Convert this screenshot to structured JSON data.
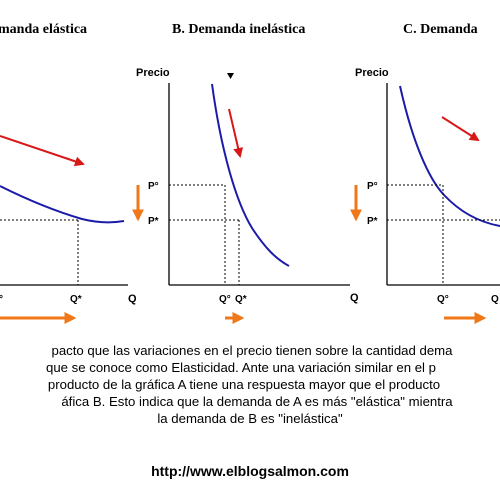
{
  "panels": {
    "a": {
      "title": "manda elástica",
      "xlabel": "Q",
      "q1": "°",
      "q2": "Q*"
    },
    "b": {
      "title": "B.  Demanda inelástica",
      "ylabel": "Precio",
      "p1": "P°",
      "p2": "P*",
      "xlabel": "Q",
      "q1": "Q°",
      "q2": "Q*"
    },
    "c": {
      "title": "C.  Demanda",
      "ylabel": "Precio",
      "p1": "P°",
      "p2": "P*",
      "q1": "Q°",
      "q2": "Q"
    }
  },
  "caption": [
    "pacto que las variaciones en el precio tienen sobre la cantidad dema",
    "que se conoce como Elasticidad. Ante una variación similar en el p",
    "producto de la gráfica A tiene una respuesta mayor que el  producto",
    "áfica B. Esto indica que la demanda de A es más \"elástica\" mientra",
    "la demanda de B es \"inelástica\""
  ],
  "url": "http://www.elblogsalmon.com",
  "colors": {
    "curve": "#1c1ca8",
    "arrow_red": "#d81818",
    "arrow_orange": "#f07818",
    "axis": "#000000"
  }
}
